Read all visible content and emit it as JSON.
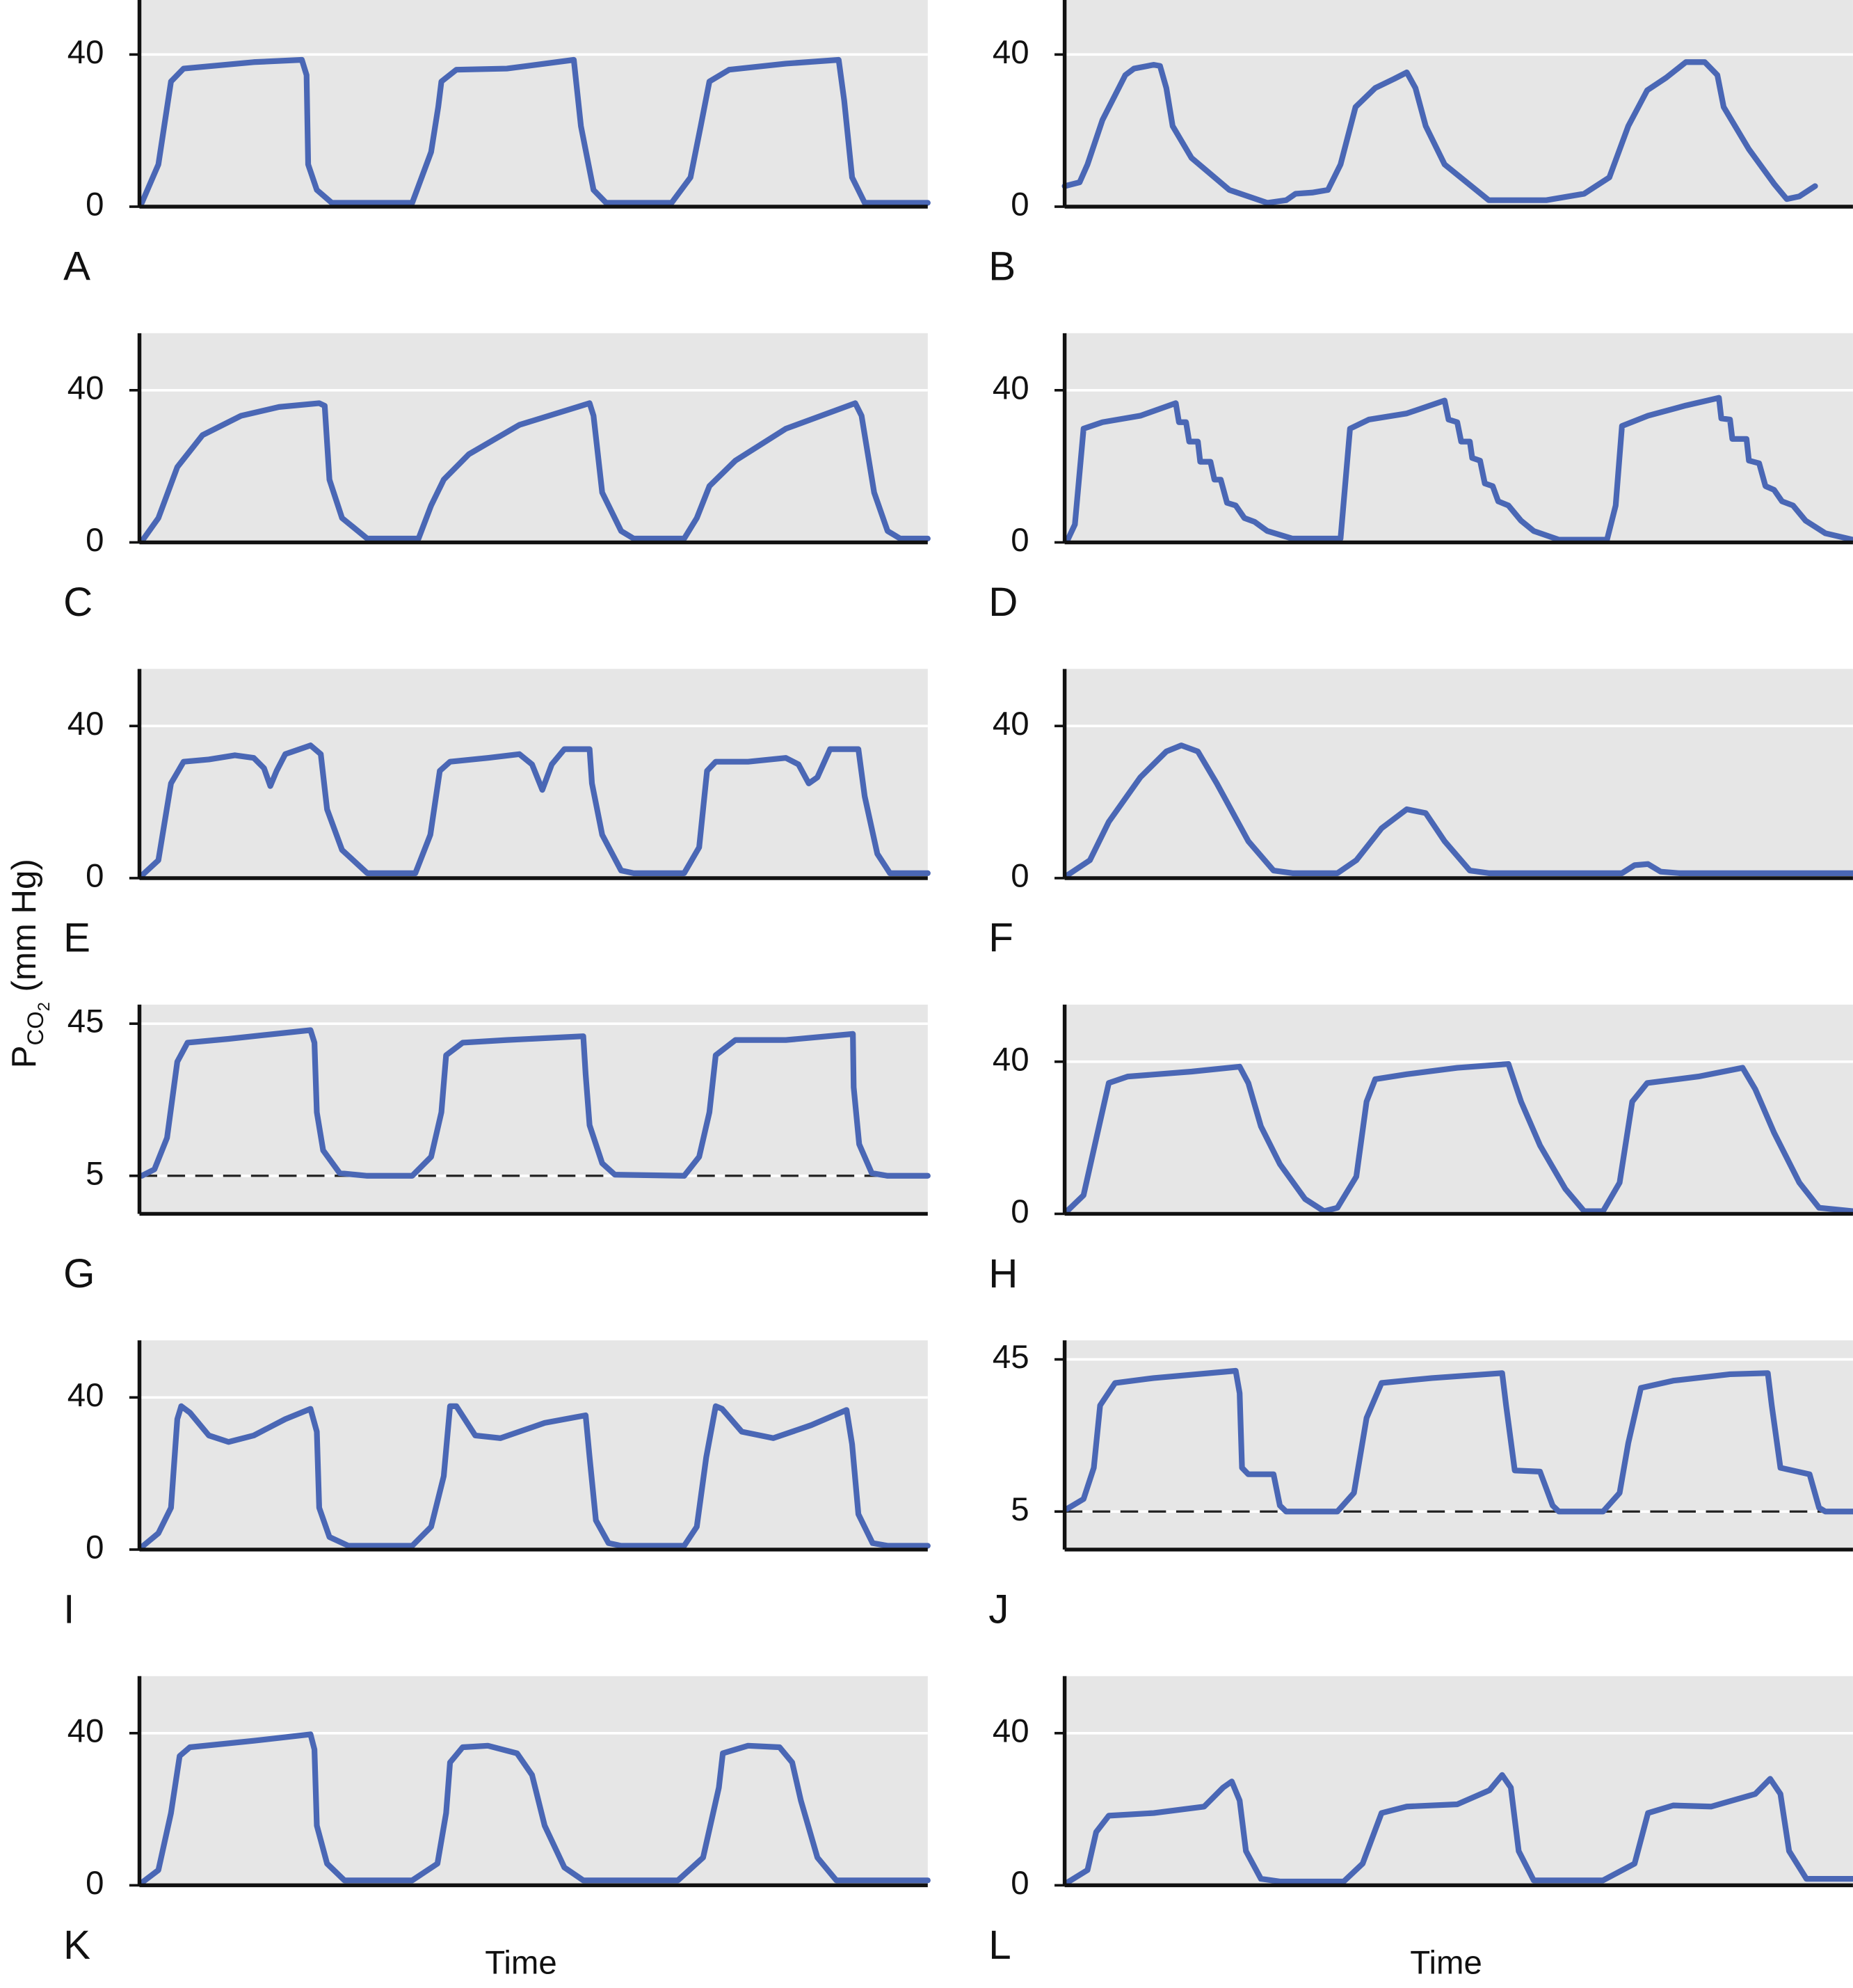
{
  "y_label": {
    "p": "P",
    "co": "CO",
    "sub": "2",
    "unit": "(mm Hg)"
  },
  "chart_data": [
    {
      "type": "line",
      "label": "A",
      "xlim": [
        0,
        100
      ],
      "ylim": [
        0,
        55
      ],
      "yticks": [
        0,
        40
      ],
      "grid": true,
      "color": "#4a67b5",
      "x": [
        0.3,
        2.4,
        4.0,
        5.6,
        14.5,
        20.6,
        21.2,
        21.4,
        22.5,
        24.4,
        34.6,
        37.0,
        37.9,
        38.3,
        40.2,
        46.6,
        55.1,
        56.0,
        57.6,
        59.2,
        67.5,
        69.9,
        71.2,
        72.3,
        74.8,
        82.0,
        88.7,
        89.4,
        90.4,
        92.0,
        100
      ],
      "values": [
        1.0,
        11.1,
        32.9,
        36.3,
        38.0,
        38.6,
        34.6,
        11.1,
        4.4,
        1.0,
        1.0,
        14.4,
        26.2,
        32.9,
        36.0,
        36.3,
        38.6,
        21.2,
        4.4,
        1.0,
        1.0,
        7.7,
        21.2,
        32.9,
        36.0,
        37.6,
        38.6,
        27.9,
        7.7,
        1.0,
        1.0
      ]
    },
    {
      "type": "line",
      "label": "B",
      "xlim": [
        0,
        100
      ],
      "ylim": [
        0,
        55
      ],
      "yticks": [
        0,
        40
      ],
      "grid": true,
      "color": "#4a67b5",
      "x": [
        0,
        1.9,
        2.9,
        4.8,
        7.7,
        8.8,
        11.3,
        12.1,
        12.9,
        13.7,
        16.1,
        20.9,
        25.7,
        28.1,
        29.3,
        31.4,
        33.4,
        35.0,
        36.9,
        39.4,
        41.8,
        43.4,
        44.5,
        45.8,
        48.2,
        53.8,
        61.1,
        65.9,
        69.1,
        71.5,
        73.9,
        76.3,
        78.8,
        81.2,
        82.8,
        83.6,
        86.8,
        90.0,
        91.6,
        93.2,
        95.2
      ],
      "values": [
        5.4,
        6.4,
        11.1,
        22.8,
        34.6,
        36.3,
        37.3,
        37.0,
        31.2,
        21.2,
        12.8,
        4.4,
        1.0,
        1.7,
        3.4,
        3.7,
        4.4,
        11.1,
        26.2,
        31.2,
        33.6,
        35.3,
        31.2,
        21.2,
        11.1,
        1.7,
        1.7,
        3.4,
        7.7,
        21.2,
        30.6,
        33.9,
        38.0,
        38.0,
        34.6,
        26.2,
        15.1,
        6.0,
        2.0,
        2.7,
        5.4
      ]
    },
    {
      "type": "line",
      "label": "C",
      "xlim": [
        0,
        100
      ],
      "ylim": [
        0,
        55
      ],
      "yticks": [
        0,
        40
      ],
      "grid": true,
      "color": "#4a67b5",
      "x": [
        0.3,
        2.4,
        4.8,
        8.0,
        12.9,
        17.7,
        22.8,
        23.5,
        24.1,
        25.7,
        28.9,
        35.4,
        37.0,
        38.6,
        41.8,
        48.2,
        57.1,
        57.6,
        58.7,
        61.1,
        62.7,
        69.1,
        70.7,
        72.3,
        75.6,
        82.0,
        90.8,
        91.6,
        93.2,
        94.9,
        96.5,
        100
      ],
      "values": [
        0.3,
        6.4,
        19.8,
        28.2,
        33.3,
        35.6,
        36.6,
        35.9,
        16.5,
        6.4,
        1,
        1,
        9.7,
        16.5,
        23.2,
        30.9,
        36.6,
        33.3,
        13.1,
        3.0,
        1,
        1,
        6.4,
        14.8,
        21.5,
        29.9,
        36.6,
        33.3,
        13.1,
        3.0,
        1,
        1
      ]
    },
    {
      "type": "line",
      "label": "D",
      "xlim": [
        0,
        100
      ],
      "ylim": [
        0,
        55
      ],
      "yticks": [
        0,
        40
      ],
      "grid": true,
      "color": "#4a67b5",
      "x": [
        0.3,
        1.3,
        2.4,
        4.8,
        9.6,
        14.1,
        14.5,
        15.4,
        15.8,
        16.9,
        17.2,
        18.5,
        19.0,
        19.8,
        20.6,
        21.7,
        22.8,
        24.1,
        25.7,
        28.9,
        35.0,
        36.2,
        38.6,
        43.4,
        48.2,
        48.7,
        49.8,
        50.3,
        51.4,
        51.7,
        52.7,
        53.3,
        54.3,
        55.0,
        56.3,
        57.9,
        59.5,
        62.7,
        68.8,
        69.9,
        70.7,
        74.0,
        78.8,
        83.0,
        83.3,
        84.4,
        84.7,
        86.5,
        86.8,
        88.1,
        88.9,
        90.0,
        91.0,
        92.4,
        94.0,
        96.5,
        100
      ],
      "values": [
        0.3,
        4.7,
        29.9,
        31.6,
        33.3,
        36.6,
        31.6,
        31.6,
        26.5,
        26.5,
        21.2,
        21.2,
        16.5,
        16.5,
        10.4,
        9.7,
        6.4,
        5.4,
        3.0,
        1.0,
        1.0,
        29.9,
        32.3,
        33.9,
        37.3,
        32.3,
        31.6,
        26.5,
        26.5,
        22.2,
        21.5,
        15.5,
        14.8,
        10.8,
        9.7,
        5.7,
        3.0,
        0.7,
        0.7,
        9.7,
        30.6,
        33.3,
        36.0,
        38.0,
        32.6,
        32.3,
        27.2,
        27.2,
        21.5,
        20.8,
        14.8,
        13.8,
        10.8,
        9.7,
        5.7,
        2.4,
        0.7
      ]
    },
    {
      "type": "line",
      "label": "E",
      "xlim": [
        0,
        100
      ],
      "ylim": [
        0,
        55
      ],
      "yticks": [
        0,
        40
      ],
      "grid": true,
      "color": "#4a67b5",
      "x": [
        0.3,
        2.4,
        4.0,
        5.6,
        8.8,
        12.1,
        14.5,
        15.8,
        16.6,
        17.4,
        18.5,
        21.7,
        23.0,
        23.8,
        25.7,
        28.9,
        35.0,
        36.9,
        38.1,
        39.4,
        44.2,
        48.2,
        49.8,
        51.1,
        52.3,
        53.9,
        57.1,
        57.4,
        58.7,
        61.1,
        62.7,
        69.1,
        71.0,
        72.0,
        73.1,
        77.2,
        82.0,
        83.6,
        84.9,
        86.0,
        87.6,
        91.2,
        92.0,
        93.6,
        95.2,
        100
      ],
      "values": [
        0.7,
        4.7,
        24.9,
        30.6,
        31.2,
        32.3,
        31.6,
        28.9,
        24.2,
        28.2,
        32.6,
        34.9,
        32.6,
        18.1,
        7.4,
        1.3,
        1.3,
        11.4,
        28.2,
        30.6,
        31.6,
        32.6,
        29.9,
        23.2,
        29.9,
        33.9,
        33.9,
        24.9,
        11.4,
        2.0,
        1.3,
        1.3,
        8.1,
        28.2,
        30.6,
        30.6,
        31.6,
        29.9,
        24.9,
        26.5,
        33.9,
        33.9,
        21.5,
        6.4,
        1.3,
        1.3
      ]
    },
    {
      "type": "line",
      "label": "F",
      "xlim": [
        0,
        100
      ],
      "ylim": [
        0,
        55
      ],
      "yticks": [
        0,
        40
      ],
      "grid": true,
      "color": "#4a67b5",
      "x": [
        0.3,
        3.2,
        5.6,
        9.6,
        12.9,
        14.8,
        16.9,
        19.3,
        23.3,
        26.5,
        28.9,
        34.6,
        37.0,
        40.2,
        43.4,
        45.8,
        48.2,
        51.4,
        53.8,
        70.7,
        72.3,
        74.0,
        75.6,
        78.0,
        100
      ],
      "values": [
        0.7,
        4.7,
        14.8,
        26.5,
        33.3,
        34.9,
        33.3,
        24.9,
        9.7,
        2.0,
        1.3,
        1.3,
        4.7,
        13.1,
        18.1,
        17.1,
        9.7,
        2.0,
        1.3,
        1.3,
        3.4,
        3.7,
        1.7,
        1.3,
        1.3
      ]
    },
    {
      "type": "line",
      "label": "G",
      "xlim": [
        0,
        100
      ],
      "ylim": [
        -5,
        50
      ],
      "yticks": [
        5,
        45
      ],
      "grid": true,
      "reference_line": 5,
      "color": "#4a67b5",
      "x": [
        0.3,
        1.9,
        3.5,
        4.8,
        6.1,
        11.3,
        21.7,
        22.2,
        22.5,
        23.3,
        25.4,
        28.9,
        34.6,
        37.0,
        38.3,
        38.9,
        41.0,
        46.6,
        56.3,
        56.6,
        57.1,
        58.7,
        60.3,
        69.1,
        71.0,
        72.3,
        73.1,
        75.6,
        82.0,
        90.5,
        90.6,
        91.3,
        92.9,
        94.9,
        100
      ],
      "values": [
        5,
        6.7,
        15,
        35,
        40,
        41,
        43.3,
        40,
        21.7,
        11.7,
        5.7,
        5,
        5,
        10,
        21.7,
        36.7,
        40,
        40.7,
        41.7,
        31.7,
        18.3,
        8.3,
        5.3,
        5,
        10,
        21.7,
        36.7,
        40.7,
        40.7,
        42.3,
        28.3,
        13.3,
        5.7,
        5,
        5
      ]
    },
    {
      "type": "line",
      "label": "H",
      "xlim": [
        0,
        100
      ],
      "ylim": [
        0,
        55
      ],
      "yticks": [
        0,
        40
      ],
      "grid": true,
      "color": "#4a67b5",
      "x": [
        0.3,
        2.4,
        4.0,
        5.6,
        8.0,
        16.1,
        22.2,
        23.3,
        24.9,
        27.3,
        30.5,
        32.9,
        34.6,
        37.0,
        38.3,
        39.4,
        43.4,
        49.8,
        56.3,
        57.9,
        60.3,
        63.5,
        65.9,
        68.3,
        70.4,
        72.0,
        73.9,
        80.4,
        86.0,
        87.6,
        90.0,
        93.2,
        95.7,
        100
      ],
      "values": [
        0.7,
        4.9,
        19.7,
        34.4,
        36.1,
        37.4,
        38.7,
        34.4,
        23,
        13.1,
        3.9,
        0.7,
        1.6,
        9.8,
        29.5,
        35.4,
        36.7,
        38.4,
        39.4,
        29.5,
        18,
        6.6,
        0.7,
        0.7,
        8.2,
        29.5,
        34.4,
        36.1,
        38.4,
        32.8,
        21.3,
        8.2,
        1.6,
        0.7
      ]
    },
    {
      "type": "line",
      "label": "I",
      "xlim": [
        0,
        100
      ],
      "ylim": [
        0,
        55
      ],
      "yticks": [
        0,
        40
      ],
      "grid": true,
      "color": "#4a67b5",
      "x": [
        0.3,
        2.4,
        4.0,
        4.8,
        5.3,
        6.4,
        8.8,
        11.3,
        14.5,
        18.5,
        21.7,
        22.5,
        22.8,
        24.1,
        26.5,
        34.6,
        37.0,
        38.6,
        39.4,
        40.2,
        42.6,
        45.8,
        51.4,
        56.6,
        57.1,
        57.9,
        59.5,
        61.1,
        69.1,
        70.7,
        71.9,
        73.1,
        73.9,
        76.4,
        80.4,
        85.2,
        89.7,
        90.4,
        91.2,
        93.0,
        94.9,
        100
      ],
      "values": [
        0.7,
        4.3,
        11,
        34.3,
        37.7,
        36,
        30,
        28.3,
        30,
        34.3,
        37,
        31,
        11,
        3.3,
        1,
        1,
        6,
        19.3,
        37.7,
        37.7,
        30,
        29.3,
        33.3,
        35.3,
        24.3,
        7.7,
        1.7,
        1,
        1,
        6,
        24.3,
        37.7,
        37,
        31,
        29.3,
        32.7,
        36.7,
        27.7,
        9.3,
        1.7,
        1,
        1
      ]
    },
    {
      "type": "line",
      "label": "J",
      "xlim": [
        0,
        100
      ],
      "ylim": [
        -5,
        50
      ],
      "yticks": [
        5,
        45
      ],
      "grid": true,
      "reference_line": 5,
      "color": "#4a67b5",
      "x": [
        0.3,
        2.4,
        3.7,
        4.5,
        6.4,
        11.3,
        21.7,
        22.2,
        22.5,
        23.3,
        26.5,
        27.3,
        28.1,
        34.6,
        36.7,
        38.3,
        40.2,
        46.6,
        55.5,
        56.0,
        57.1,
        60.3,
        61.9,
        62.7,
        68.3,
        70.4,
        71.5,
        73.1,
        77.2,
        84.4,
        89.2,
        89.7,
        90.8,
        94.5,
        95.7,
        96.5,
        100
      ],
      "values": [
        5.7,
        8.3,
        16.5,
        32.9,
        38.8,
        40.1,
        42,
        36.1,
        16.5,
        14.8,
        14.8,
        6.6,
        5,
        5,
        9.9,
        29.6,
        38.8,
        40.1,
        41.4,
        32.9,
        15.8,
        15.5,
        6.6,
        5,
        5,
        9.9,
        23,
        37.5,
        39.4,
        41.1,
        41.4,
        32.9,
        16.5,
        14.8,
        6,
        5,
        5
      ]
    },
    {
      "type": "line",
      "label": "K",
      "x_label": "Time",
      "xlim": [
        0,
        100
      ],
      "ylim": [
        0,
        55
      ],
      "yticks": [
        0,
        40
      ],
      "grid": true,
      "color": "#4a67b5",
      "x": [
        0.3,
        2.4,
        4.0,
        5.1,
        6.4,
        14.5,
        21.7,
        22.2,
        22.5,
        23.8,
        26.0,
        34.6,
        37.8,
        38.9,
        39.4,
        41.0,
        44.2,
        47.9,
        49.8,
        51.4,
        53.9,
        56.3,
        68.3,
        71.5,
        73.5,
        74.0,
        77.2,
        81.2,
        82.8,
        83.9,
        86.0,
        88.4,
        100
      ],
      "values": [
        0.7,
        4,
        19,
        34,
        36.3,
        38,
        39.7,
        35.7,
        15.7,
        5.7,
        1.3,
        1.3,
        5.7,
        19,
        32.3,
        36.3,
        36.7,
        34.7,
        29,
        15.7,
        4.7,
        1.3,
        1.3,
        7.3,
        25.7,
        34.7,
        36.7,
        36.3,
        32.3,
        22.3,
        7.3,
        1.3,
        1.3
      ]
    },
    {
      "type": "line",
      "label": "L",
      "x_label": "Time",
      "xlim": [
        0,
        100
      ],
      "ylim": [
        0,
        55
      ],
      "yticks": [
        0,
        40
      ],
      "grid": true,
      "color": "#4a67b5",
      "x": [
        0.3,
        2.9,
        4.0,
        5.6,
        11.3,
        17.7,
        20.1,
        21.2,
        22.2,
        23.0,
        24.9,
        27.3,
        35.4,
        37.8,
        40.2,
        43.4,
        49.8,
        53.9,
        55.5,
        56.6,
        57.6,
        59.5,
        68.3,
        72.3,
        74.0,
        77.2,
        82.0,
        87.6,
        89.5,
        90.8,
        91.9,
        94.1,
        100
      ],
      "values": [
        0.7,
        4,
        14,
        18.3,
        19,
        20.7,
        25.7,
        27.3,
        22.3,
        9,
        1.7,
        1,
        1,
        5.7,
        19,
        20.7,
        21.3,
        25,
        29,
        25.7,
        9,
        1.3,
        1.3,
        5.7,
        19,
        21,
        20.7,
        24,
        28,
        24,
        9,
        1.7,
        1.7
      ]
    }
  ]
}
